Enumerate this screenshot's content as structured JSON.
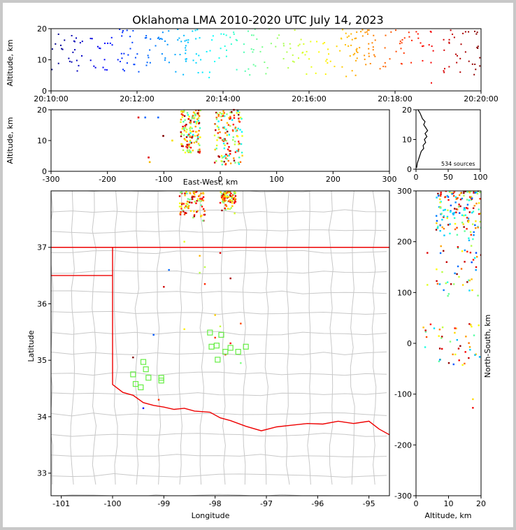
{
  "window": {
    "title": "Oklahoma LMA 2010-2020 UTC July 14, 2023"
  },
  "colors": {
    "background": "#c8c8c8",
    "panel": "#ffffff",
    "border": "#7f0000",
    "state_line": "#ee0000",
    "county_line": "#c8c8c8",
    "station_marker": "#66ee44"
  },
  "chart_data": [
    {
      "id": "time_height",
      "type": "scatter",
      "xlabel": "",
      "ylabel": "Altitude, km",
      "xlim": [
        "20:10:00",
        "20:20:00"
      ],
      "ylim": [
        0,
        20
      ],
      "xticks": [
        "20:10:00",
        "20:12:00",
        "20:14:00",
        "20:16:00",
        "20:18:00",
        "20:20:00"
      ],
      "yticks": [
        0,
        10,
        20
      ],
      "colormap": "jet (blue = early, red = late)",
      "clusters": [
        {
          "t_start_min": 0.0,
          "t_end_min": 1.8,
          "alt_min": 5,
          "alt_max": 20,
          "color": "#0000b0"
        },
        {
          "t_start_min": 1.8,
          "t_end_min": 3.3,
          "alt_min": 5,
          "alt_max": 20,
          "color": "#1a6aff"
        },
        {
          "t_start_min": 3.3,
          "t_end_min": 5.2,
          "alt_min": 4,
          "alt_max": 20,
          "color": "#22e0d8"
        },
        {
          "t_start_min": 5.2,
          "t_end_min": 7.0,
          "alt_min": 3,
          "alt_max": 20,
          "color": "#a8f070"
        },
        {
          "t_start_min": 7.0,
          "t_end_min": 8.2,
          "alt_min": 3,
          "alt_max": 20,
          "color": "#f5b800"
        },
        {
          "t_start_min": 8.2,
          "t_end_min": 10.0,
          "alt_min": 2,
          "alt_max": 20,
          "color": "#e00000"
        }
      ]
    },
    {
      "id": "ew_altitude",
      "type": "scatter",
      "xlabel": "East-West, km",
      "ylabel": "Altitude, km",
      "xlim": [
        -300,
        300
      ],
      "ylim": [
        0,
        20
      ],
      "xticks": [
        -300,
        -200,
        -100,
        0,
        100,
        200,
        300
      ],
      "yticks": [
        0,
        10,
        20
      ],
      "clusters": [
        {
          "x_min": -70,
          "x_max": -35,
          "alt_min": 6,
          "alt_max": 20
        },
        {
          "x_min": -10,
          "x_max": 40,
          "alt_min": 2,
          "alt_max": 20
        }
      ],
      "outliers": [
        {
          "x": -145,
          "alt": 17.5,
          "color": "#e00000"
        },
        {
          "x": -133,
          "alt": 17.5,
          "color": "#1a6aff"
        },
        {
          "x": -110,
          "alt": 17.5,
          "color": "#1a6aff"
        },
        {
          "x": -101,
          "alt": 11.5,
          "color": "#7f0000"
        },
        {
          "x": -85,
          "alt": 10,
          "color": "#f5e000"
        },
        {
          "x": -127,
          "alt": 4.5,
          "color": "#e00000"
        },
        {
          "x": -125,
          "alt": 3,
          "color": "#f5b800"
        }
      ]
    },
    {
      "id": "altitude_histogram",
      "type": "line",
      "xlabel": "",
      "ylabel": "",
      "xlim": [
        0,
        100
      ],
      "ylim": [
        0,
        20
      ],
      "xticks": [
        0,
        50,
        100
      ],
      "yticks": [
        0,
        10,
        20
      ],
      "annotation": "534 sources",
      "profile": [
        {
          "alt": 0.5,
          "count": 1
        },
        {
          "alt": 2,
          "count": 2
        },
        {
          "alt": 4,
          "count": 5
        },
        {
          "alt": 6,
          "count": 8
        },
        {
          "alt": 7,
          "count": 12
        },
        {
          "alt": 8,
          "count": 11
        },
        {
          "alt": 9,
          "count": 15
        },
        {
          "alt": 10,
          "count": 13
        },
        {
          "alt": 11,
          "count": 17
        },
        {
          "alt": 12,
          "count": 14
        },
        {
          "alt": 13,
          "count": 18
        },
        {
          "alt": 14,
          "count": 15
        },
        {
          "alt": 15,
          "count": 12
        },
        {
          "alt": 16,
          "count": 14
        },
        {
          "alt": 17,
          "count": 10
        },
        {
          "alt": 18,
          "count": 8
        },
        {
          "alt": 19,
          "count": 6
        },
        {
          "alt": 20,
          "count": 3
        }
      ]
    },
    {
      "id": "plan_view",
      "type": "scatter",
      "xlabel": "Longitude",
      "ylabel": "Latitude",
      "xlim": [
        -101.2,
        -94.6
      ],
      "ylim": [
        32.6,
        38.0
      ],
      "xticks": [
        -101,
        -100,
        -99,
        -98,
        -97,
        -96,
        -95
      ],
      "yticks": [
        33,
        34,
        35,
        36,
        37
      ],
      "clusters": [
        {
          "lon_min": -98.7,
          "lon_max": -98.2,
          "lat_min": 37.4,
          "lat_max": 38.0
        },
        {
          "lon_min": -97.9,
          "lon_max": -97.6,
          "lat_min": 37.6,
          "lat_max": 38.0
        }
      ],
      "scattered_sources": [
        {
          "lon": -98.6,
          "lat": 37.1
        },
        {
          "lon": -98.3,
          "lat": 36.85
        },
        {
          "lon": -97.9,
          "lat": 36.9
        },
        {
          "lon": -98.2,
          "lat": 36.65
        },
        {
          "lon": -98.3,
          "lat": 36.55
        },
        {
          "lon": -98.2,
          "lat": 36.35
        },
        {
          "lon": -97.7,
          "lat": 36.45
        },
        {
          "lon": -98.9,
          "lat": 36.6
        },
        {
          "lon": -99.0,
          "lat": 36.3
        },
        {
          "lon": -98.0,
          "lat": 35.8
        },
        {
          "lon": -97.9,
          "lat": 35.6
        },
        {
          "lon": -97.5,
          "lat": 35.65
        },
        {
          "lon": -98.6,
          "lat": 35.55
        },
        {
          "lon": -97.8,
          "lat": 35.1
        },
        {
          "lon": -97.7,
          "lat": 35.3
        },
        {
          "lon": -97.5,
          "lat": 34.95
        },
        {
          "lon": -99.2,
          "lat": 35.45
        },
        {
          "lon": -98.0,
          "lat": 35.4
        },
        {
          "lon": -99.1,
          "lat": 34.3
        },
        {
          "lon": -99.4,
          "lat": 34.15
        },
        {
          "lon": -99.6,
          "lat": 35.05
        }
      ],
      "stations": [
        {
          "lon": -99.6,
          "lat": 34.75
        },
        {
          "lon": -99.4,
          "lat": 34.97
        },
        {
          "lon": -99.35,
          "lat": 34.84
        },
        {
          "lon": -99.3,
          "lat": 34.69
        },
        {
          "lon": -99.55,
          "lat": 34.58
        },
        {
          "lon": -99.45,
          "lat": 34.52
        },
        {
          "lon": -99.05,
          "lat": 34.69
        },
        {
          "lon": -99.05,
          "lat": 34.64
        },
        {
          "lon": -98.1,
          "lat": 35.49
        },
        {
          "lon": -97.88,
          "lat": 35.45
        },
        {
          "lon": -98.07,
          "lat": 35.24
        },
        {
          "lon": -97.97,
          "lat": 35.26
        },
        {
          "lon": -97.8,
          "lat": 35.15
        },
        {
          "lon": -97.7,
          "lat": 35.22
        },
        {
          "lon": -97.55,
          "lat": 35.15
        },
        {
          "lon": -97.4,
          "lat": 35.24
        },
        {
          "lon": -97.95,
          "lat": 35.01
        }
      ]
    },
    {
      "id": "ns_altitude",
      "type": "scatter",
      "xlabel": "Altitude, km",
      "ylabel": "North-South, km",
      "xlim": [
        0,
        20
      ],
      "ylim": [
        -300,
        300
      ],
      "xticks": [
        0,
        10,
        20
      ],
      "yticks": [
        -300,
        -200,
        -100,
        0,
        100,
        200,
        300
      ],
      "clusters": [
        {
          "alt_min": 6,
          "alt_max": 20,
          "ns_min": 210,
          "ns_max": 300
        },
        {
          "alt_min": 2,
          "alt_max": 20,
          "ns_min": -45,
          "ns_max": 40
        },
        {
          "alt_min": 6,
          "alt_max": 20,
          "ns_min": 90,
          "ns_max": 210
        }
      ],
      "outliers": [
        {
          "alt": 17.5,
          "ns": -110
        },
        {
          "alt": 17.5,
          "ns": -127
        },
        {
          "alt": 18.5,
          "ns": 150
        },
        {
          "alt": 18.5,
          "ns": 178
        },
        {
          "alt": 17.5,
          "ns": 205
        },
        {
          "alt": 3.5,
          "ns": 178
        },
        {
          "alt": 3.5,
          "ns": 115
        }
      ]
    }
  ]
}
